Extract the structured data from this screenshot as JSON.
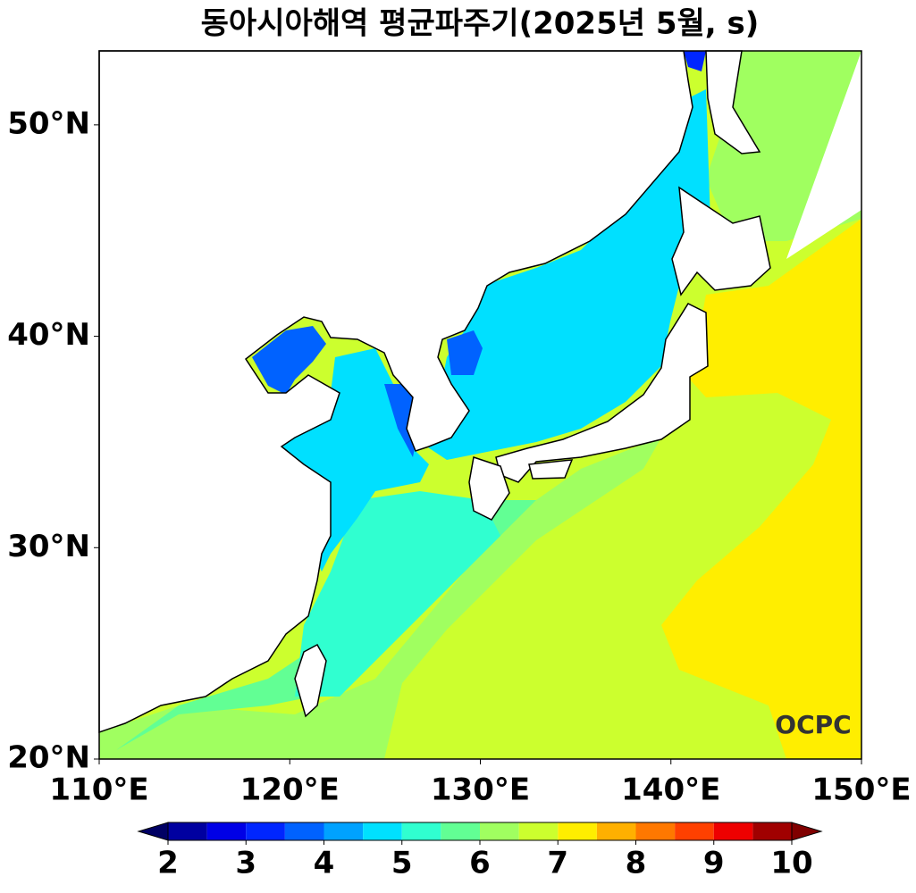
{
  "chart_data": {
    "type": "map",
    "title": "동아시아해역 평균파주기(2025년 5월, s)",
    "xlim": [
      110,
      150
    ],
    "ylim": [
      20,
      53.5
    ],
    "xticks": [
      {
        "value": 110,
        "label": "110°E"
      },
      {
        "value": 120,
        "label": "120°E"
      },
      {
        "value": 130,
        "label": "130°E"
      },
      {
        "value": 140,
        "label": "140°E"
      },
      {
        "value": 150,
        "label": "150°E"
      }
    ],
    "yticks": [
      {
        "value": 20,
        "label": "20°N"
      },
      {
        "value": 30,
        "label": "30°N"
      },
      {
        "value": 40,
        "label": "40°N"
      },
      {
        "value": 50,
        "label": "50°N"
      }
    ],
    "colorbar": {
      "levels": [
        2,
        2.5,
        3,
        3.5,
        4,
        4.5,
        5,
        5.5,
        6,
        6.5,
        7,
        7.5,
        8,
        8.5,
        9,
        9.5,
        10
      ],
      "colors": [
        "#0000a0",
        "#0000e6",
        "#0026ff",
        "#0062ff",
        "#00a2ff",
        "#00e0ff",
        "#30ffd0",
        "#62ff94",
        "#a0ff60",
        "#ccff2e",
        "#ffee00",
        "#ffb000",
        "#ff7800",
        "#ff4000",
        "#ee0000",
        "#a00000"
      ],
      "extend_colors": [
        "#000064",
        "#800000"
      ],
      "ticks": [
        2,
        3,
        4,
        5,
        6,
        7,
        8,
        9,
        10
      ]
    }
  },
  "logo": "OCPC"
}
